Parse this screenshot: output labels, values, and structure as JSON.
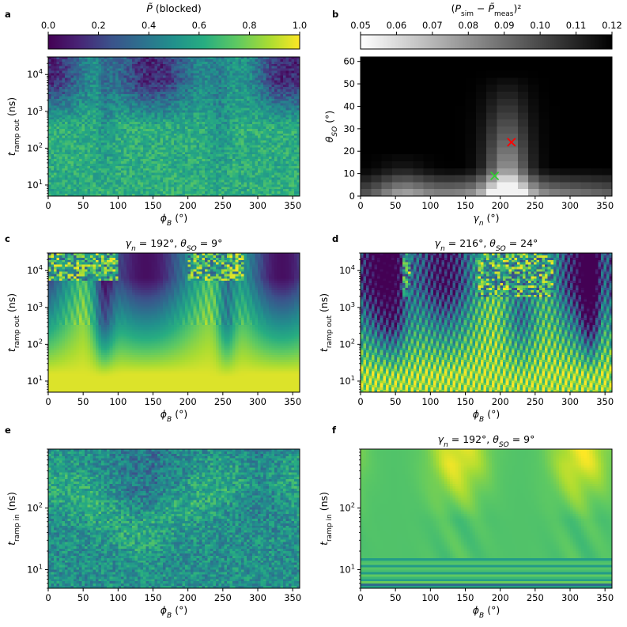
{
  "figure": {
    "panel_labels": [
      "a",
      "b",
      "c",
      "d",
      "e",
      "f"
    ]
  },
  "colorbars": {
    "a": {
      "label": "P̃ (blocked)",
      "ticks": [
        "0.0",
        "0.2",
        "0.4",
        "0.6",
        "0.8",
        "1.0"
      ],
      "range": [
        0,
        1
      ],
      "colormap": "viridis"
    },
    "b": {
      "label": "(P_sim − P̃_meas)²",
      "ticks": [
        "0.05",
        "0.06",
        "0.07",
        "0.08",
        "0.09",
        "0.10",
        "0.11",
        "0.12"
      ],
      "range": [
        0.05,
        0.12
      ],
      "colormap": "gray_r"
    }
  },
  "chart_data": [
    {
      "id": "a",
      "type": "heatmap",
      "title": "",
      "xlabel": "ϕ_B (°)",
      "ylabel": "t_ramp out (ns)",
      "xlim": [
        0,
        360
      ],
      "ylim": [
        5,
        30000
      ],
      "yscale": "log",
      "xticks": [
        "0",
        "50",
        "100",
        "150",
        "200",
        "250",
        "300",
        "350"
      ],
      "yticks": [
        "10¹",
        "10²",
        "10³",
        "10⁴"
      ],
      "z_range": [
        0,
        1
      ],
      "description": "measured blocked probability vs field angle and ramp-out time; low (blue) at long times near 0°, 150° and 330°, high (green) below ~1 μs"
    },
    {
      "id": "b",
      "type": "heatmap",
      "title": "",
      "xlabel": "γ_n (°)",
      "ylabel": "θ_SO (°)",
      "xlim": [
        0,
        360
      ],
      "ylim": [
        0,
        62
      ],
      "xticks": [
        "0",
        "50",
        "100",
        "150",
        "200",
        "250",
        "300",
        "350"
      ],
      "yticks": [
        "0",
        "10",
        "20",
        "30",
        "40",
        "50",
        "60"
      ],
      "z_range": [
        0.05,
        0.12
      ],
      "markers": [
        {
          "label": "best fit 1",
          "x": 192,
          "y": 9,
          "color": "#33cc33",
          "symbol": "x"
        },
        {
          "label": "best fit 2",
          "x": 216,
          "y": 24,
          "color": "#ff0000",
          "symbol": "x"
        }
      ],
      "description": "squared deviation between simulation and measurement; minimum valley around γ_n ≈ 190–220°"
    },
    {
      "id": "c",
      "type": "heatmap",
      "title": "γ_n = 192°, θ_SO = 9°",
      "title_color": "#33cc33",
      "xlabel": "ϕ_B (°)",
      "ylabel": "t_ramp out (ns)",
      "xlim": [
        0,
        360
      ],
      "ylim": [
        5,
        30000
      ],
      "yscale": "log",
      "xticks": [
        "0",
        "50",
        "100",
        "150",
        "200",
        "250",
        "300",
        "350"
      ],
      "yticks": [
        "10¹",
        "10²",
        "10³",
        "10⁴"
      ],
      "z_range": [
        0,
        1
      ],
      "description": "simulated blocked probability; yellow at short times, dark-blue lobes centred near 140° and 330° at long times"
    },
    {
      "id": "d",
      "type": "heatmap",
      "title": "γ_n = 216°, θ_SO = 24°",
      "title_color": "#ff0000",
      "xlabel": "ϕ_B (°)",
      "ylabel": "t_ramp out (ns)",
      "xlim": [
        0,
        360
      ],
      "ylim": [
        5,
        30000
      ],
      "yscale": "log",
      "xticks": [
        "0",
        "50",
        "100",
        "150",
        "200",
        "250",
        "300",
        "350"
      ],
      "yticks": [
        "10¹",
        "10²",
        "10³",
        "10⁴"
      ],
      "z_range": [
        0,
        1
      ],
      "description": "simulated blocked probability with stronger oscillatory structure"
    },
    {
      "id": "e",
      "type": "heatmap",
      "title": "",
      "xlabel": "ϕ_B (°)",
      "ylabel": "t_ramp in (ns)",
      "xlim": [
        0,
        360
      ],
      "ylim": [
        5,
        900
      ],
      "yscale": "log",
      "xticks": [
        "0",
        "50",
        "100",
        "150",
        "200",
        "250",
        "300",
        "350"
      ],
      "yticks": [
        "10¹",
        "10²"
      ],
      "z_range": [
        0,
        1
      ],
      "description": "measured blocked probability vs ramp-in time; mostly green-blue noise"
    },
    {
      "id": "f",
      "type": "heatmap",
      "title": "γ_n = 192°, θ_SO = 9°",
      "title_color": "#33cc33",
      "xlabel": "ϕ_B (°)",
      "ylabel": "t_ramp in (ns)",
      "xlim": [
        0,
        360
      ],
      "ylim": [
        5,
        900
      ],
      "yscale": "log",
      "xticks": [
        "0",
        "50",
        "100",
        "150",
        "200",
        "250",
        "300",
        "350"
      ],
      "yticks": [
        "10¹",
        "10²"
      ],
      "z_range": [
        0,
        1
      ],
      "description": "simulated ramp-in map; mostly green with yellow fans near 140° and 320°, horizontal bands below 15 ns"
    }
  ]
}
